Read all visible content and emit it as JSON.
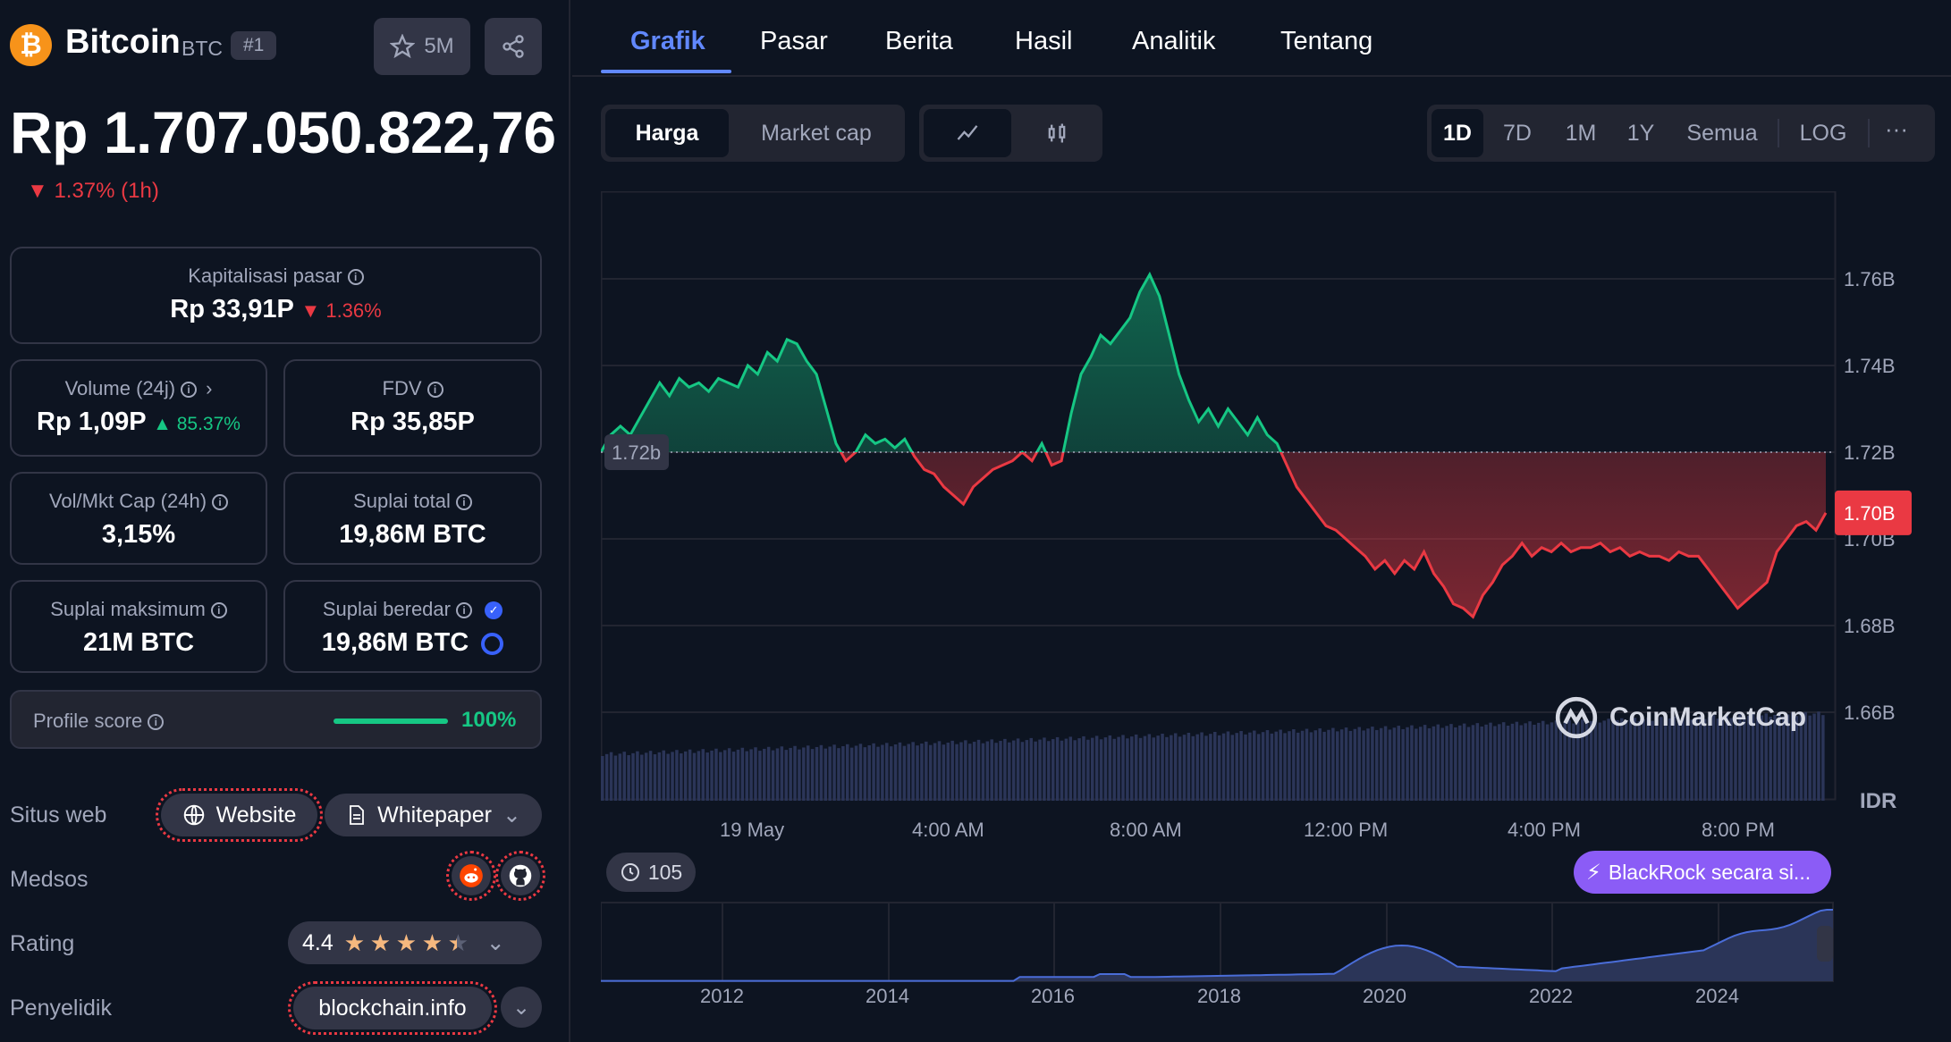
{
  "coin": {
    "name": "Bitcoin",
    "symbol": "BTC",
    "rank": "#1",
    "watchlist_count": "5M",
    "logo_icon": "bitcoin-logo-icon",
    "price": "Rp 1.707.050.822,76",
    "change_1h": "1.37% (1h)"
  },
  "stats": {
    "market_cap": {
      "label": "Kapitalisasi pasar",
      "value": "Rp 33,91P",
      "change": "1.36%"
    },
    "volume": {
      "label": "Volume (24j)",
      "value": "Rp 1,09P",
      "change": "85.37%"
    },
    "fdv": {
      "label": "FDV",
      "value": "Rp 35,85P"
    },
    "vol_mkt_cap": {
      "label": "Vol/Mkt Cap (24h)",
      "value": "3,15%"
    },
    "total_supply": {
      "label": "Suplai total",
      "value": "19,86M BTC"
    },
    "max_supply": {
      "label": "Suplai maksimum",
      "value": "21M BTC"
    },
    "circulating_supply": {
      "label": "Suplai beredar",
      "value": "19,86M BTC"
    },
    "profile_score": {
      "label": "Profile score",
      "value": "100%",
      "fraction": 1.0
    }
  },
  "links": {
    "website_label": "Situs web",
    "website_btn": "Website",
    "whitepaper_btn": "Whitepaper",
    "socials_label": "Medsos",
    "rating_label": "Rating",
    "rating_value": "4.4",
    "rating_stars": 4.4,
    "explorer_label": "Penyelidik",
    "explorer_value": "blockchain.info"
  },
  "tabs": [
    "Grafik",
    "Pasar",
    "Berita",
    "Hasil",
    "Analitik",
    "Tentang"
  ],
  "chart_controls": {
    "price_btn": "Harga",
    "mcap_btn": "Market cap",
    "ranges": [
      "1D",
      "7D",
      "1M",
      "1Y",
      "Semua",
      "LOG"
    ],
    "more": "···"
  },
  "chart_data": {
    "type": "area",
    "currency": "IDR",
    "y_ticks": [
      "1.76B",
      "1.74B",
      "1.72B",
      "1.70B",
      "1.68B",
      "1.66B"
    ],
    "x_ticks": [
      "19 May",
      "4:00 AM",
      "8:00 AM",
      "12:00 PM",
      "4:00 PM",
      "8:00 PM"
    ],
    "baseline_label": "1.72b",
    "baseline_value": 1.72,
    "current_label": "1.70B",
    "ylim": [
      1.66,
      1.76
    ],
    "series": [
      {
        "values": [
          1.72,
          1.724,
          1.726,
          1.724,
          1.728,
          1.732,
          1.736,
          1.733,
          1.737,
          1.735,
          1.736,
          1.734,
          1.737,
          1.736,
          1.735,
          1.74,
          1.738,
          1.743,
          1.741,
          1.746,
          1.745,
          1.741,
          1.738,
          1.73,
          1.722,
          1.718,
          1.72,
          1.724,
          1.722,
          1.723,
          1.721,
          1.723,
          1.719,
          1.716,
          1.715,
          1.712,
          1.71,
          1.708,
          1.712,
          1.714,
          1.716,
          1.717,
          1.718,
          1.72,
          1.718,
          1.722,
          1.717,
          1.718,
          1.729,
          1.738,
          1.742,
          1.747,
          1.745,
          1.748,
          1.751,
          1.757,
          1.761,
          1.756,
          1.747,
          1.738,
          1.732,
          1.727,
          1.73,
          1.726,
          1.73,
          1.727,
          1.724,
          1.728,
          1.724,
          1.722,
          1.717,
          1.712,
          1.709,
          1.706,
          1.703,
          1.702,
          1.7,
          1.698,
          1.696,
          1.693,
          1.695,
          1.692,
          1.695,
          1.693,
          1.697,
          1.692,
          1.689,
          1.685,
          1.684,
          1.682,
          1.687,
          1.69,
          1.694,
          1.696,
          1.699,
          1.696,
          1.698,
          1.697,
          1.699,
          1.697,
          1.698,
          1.698,
          1.699,
          1.697,
          1.698,
          1.696,
          1.697,
          1.696,
          1.696,
          1.695,
          1.697,
          1.696,
          1.696,
          1.693,
          1.69,
          1.687,
          1.684,
          1.686,
          1.688,
          1.69,
          1.697,
          1.7,
          1.703,
          1.704,
          1.702,
          1.706
        ]
      }
    ],
    "history_x_ticks": [
      "2012",
      "2014",
      "2016",
      "2018",
      "2020",
      "2022",
      "2024"
    ]
  },
  "chart_extras": {
    "watermark": "CoinMarketCap",
    "events_count": "105",
    "news_badge": "BlackRock secara si..."
  },
  "colors": {
    "up": "#16c784",
    "down": "#ea3943",
    "accent": "#6188ff",
    "news": "#8b5cf6"
  }
}
